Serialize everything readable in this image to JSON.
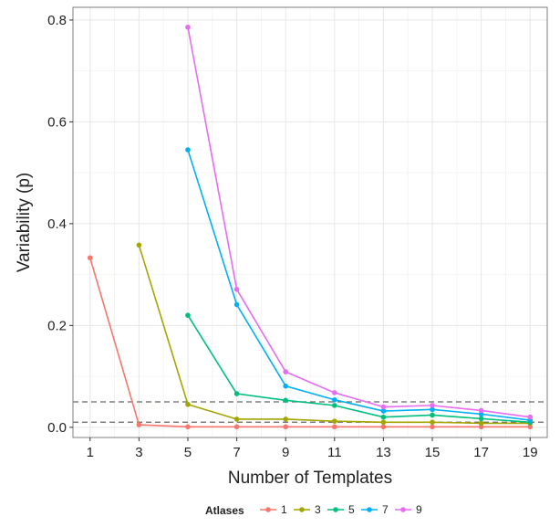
{
  "chart_data": {
    "type": "line",
    "xlabel": "Number of Templates",
    "ylabel": "Variability (p)",
    "xlim": [
      0.3,
      19.7
    ],
    "ylim": [
      -0.02,
      0.825
    ],
    "x_ticks": [
      1,
      3,
      5,
      7,
      9,
      11,
      13,
      15,
      17,
      19
    ],
    "x_tick_labels": [
      "1",
      "3",
      "5",
      "7",
      "9",
      "11",
      "13",
      "15",
      "17",
      "19"
    ],
    "y_ticks": [
      0.0,
      0.2,
      0.4,
      0.6,
      0.8
    ],
    "y_tick_labels": [
      "0.0",
      "0.2",
      "0.4",
      "0.6",
      "0.8"
    ],
    "grid": true,
    "reference_lines": [
      0.05,
      0.01
    ],
    "legend": {
      "title": "Atlases",
      "position": "bottom"
    },
    "series": [
      {
        "name": "1",
        "color": "#F8766D",
        "x": [
          1,
          3,
          5,
          7,
          9,
          11,
          13,
          15,
          17,
          19
        ],
        "y": [
          0.333,
          0.005,
          0.001,
          0.001,
          0.001,
          0.001,
          0.001,
          0.001,
          0.001,
          0.001
        ]
      },
      {
        "name": "3",
        "color": "#A3A500",
        "x": [
          3,
          5,
          7,
          9,
          11,
          13,
          15,
          17,
          19
        ],
        "y": [
          0.358,
          0.045,
          0.016,
          0.016,
          0.012,
          0.01,
          0.01,
          0.008,
          0.008
        ]
      },
      {
        "name": "5",
        "color": "#00BF7D",
        "x": [
          5,
          7,
          9,
          11,
          13,
          15,
          17,
          19
        ],
        "y": [
          0.22,
          0.066,
          0.053,
          0.043,
          0.02,
          0.024,
          0.017,
          0.01
        ]
      },
      {
        "name": "7",
        "color": "#00B0F6",
        "x": [
          5,
          7,
          9,
          11,
          13,
          15,
          17,
          19
        ],
        "y": [
          0.545,
          0.241,
          0.081,
          0.054,
          0.032,
          0.035,
          0.026,
          0.014
        ]
      },
      {
        "name": "9",
        "color": "#E76BF3",
        "x": [
          5,
          7,
          9,
          11,
          13,
          15,
          17,
          19
        ],
        "y": [
          0.786,
          0.271,
          0.109,
          0.068,
          0.04,
          0.043,
          0.033,
          0.02
        ]
      }
    ]
  }
}
